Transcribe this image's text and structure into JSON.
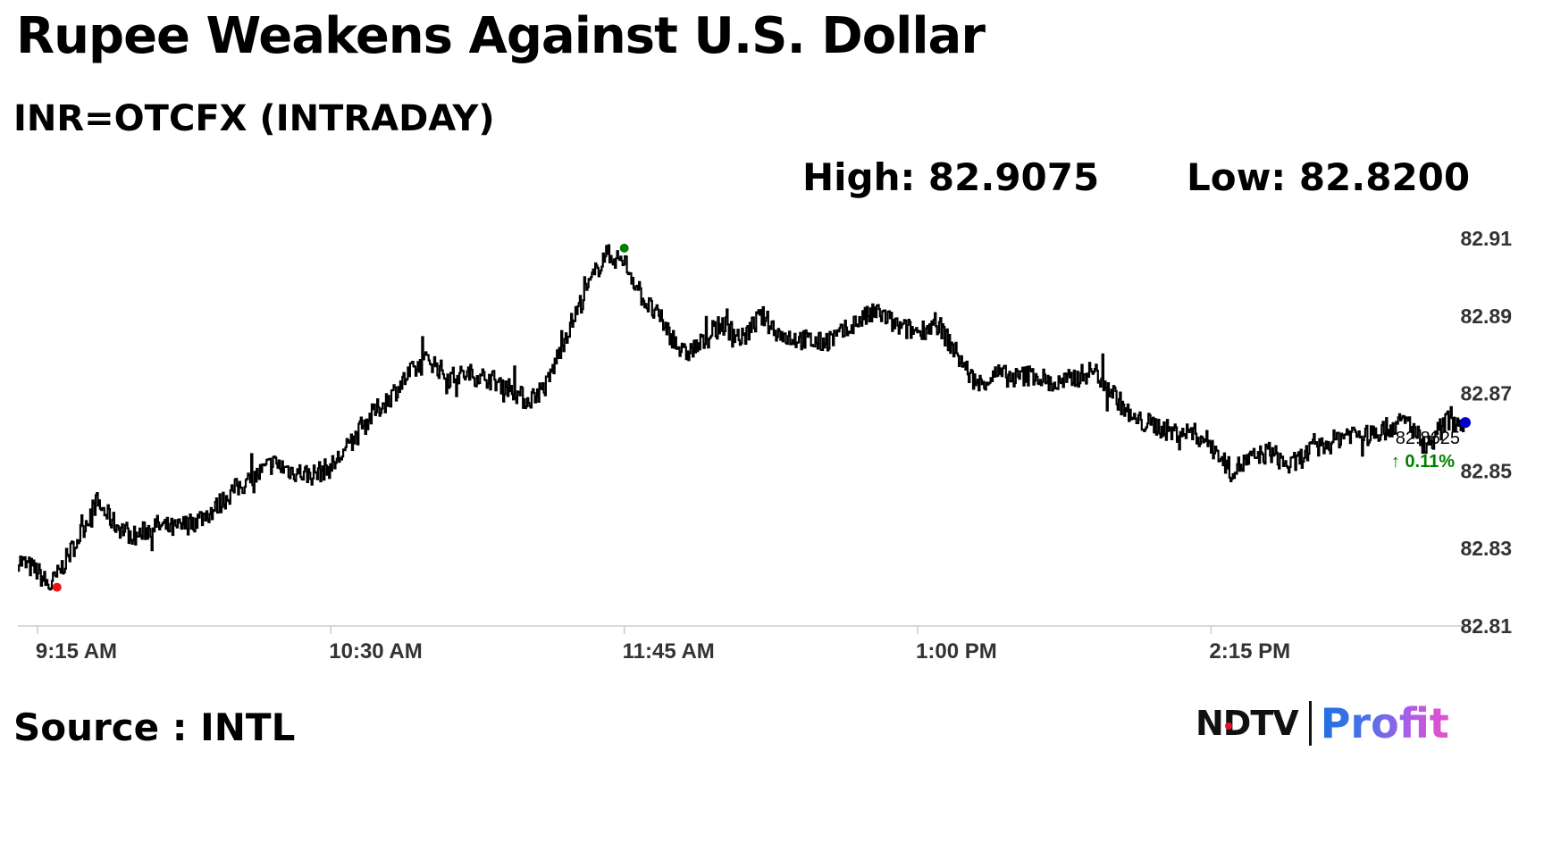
{
  "header": {
    "title": "Rupee Weakens Against U.S. Dollar",
    "subtitle": "INR=OTCFX (INTRADAY)",
    "high_text": "High: 82.9075",
    "low_text": "Low: 82.8200"
  },
  "footer": {
    "source": "Source : INTL",
    "logo_ndtv": "NDTV",
    "logo_profit": "Profit"
  },
  "colors": {
    "line": "#000000",
    "high_marker": "#008000",
    "low_marker": "#ee1111",
    "last_marker": "#0000cc",
    "change_text": "#008000",
    "axis": "#cccccc"
  },
  "chart_data": {
    "type": "line",
    "title": "Rupee Weakens Against U.S. Dollar",
    "subtitle": "INR=OTCFX (INTRADAY)",
    "x_unit": "time",
    "xlim": [
      "9:10",
      "3:20"
    ],
    "ylim": [
      82.81,
      82.91
    ],
    "y_ticks": [
      "82.91",
      "82.89",
      "82.87",
      "82.85",
      "82.83",
      "82.81"
    ],
    "x_ticks": [
      "9:15 AM",
      "10:30 AM",
      "11:45 AM",
      "1:00 PM",
      "2:15 PM"
    ],
    "grid": false,
    "legend": "none",
    "series": [
      {
        "x": [
          "9:10",
          "9:15",
          "9:18",
          "9:20",
          "9:25",
          "9:30",
          "9:35",
          "9:40",
          "9:45",
          "9:50",
          "9:55",
          "10:00",
          "10:05",
          "10:10",
          "10:15",
          "10:20",
          "10:25",
          "10:30",
          "10:35",
          "10:40",
          "10:45",
          "10:50",
          "10:55",
          "11:00",
          "11:05",
          "11:10",
          "11:15",
          "11:20",
          "11:25",
          "11:30",
          "11:35",
          "11:40",
          "11:45",
          "11:50",
          "11:55",
          "12:00",
          "12:05",
          "12:10",
          "12:15",
          "12:20",
          "12:25",
          "12:30",
          "12:35",
          "12:40",
          "12:45",
          "12:50",
          "12:55",
          "1:00",
          "1:05",
          "1:10",
          "1:15",
          "1:20",
          "1:25",
          "1:30",
          "1:35",
          "1:40",
          "1:45",
          "1:50",
          "1:55",
          "2:00",
          "2:05",
          "2:10",
          "2:15",
          "2:20",
          "2:25",
          "2:30",
          "2:35",
          "2:40",
          "2:45",
          "2:50",
          "2:55",
          "3:00",
          "3:05",
          "3:10",
          "3:15",
          "3:20"
        ],
        "y": [
          82.827,
          82.824,
          82.82,
          82.823,
          82.832,
          82.842,
          82.836,
          82.833,
          82.836,
          82.835,
          82.837,
          82.84,
          82.845,
          82.848,
          82.852,
          82.85,
          82.849,
          82.851,
          82.857,
          82.864,
          82.869,
          82.875,
          82.879,
          82.874,
          82.875,
          82.874,
          82.872,
          82.868,
          82.872,
          82.885,
          82.896,
          82.906,
          82.904,
          82.894,
          82.888,
          82.88,
          82.883,
          82.888,
          82.884,
          82.89,
          82.885,
          82.884,
          82.883,
          82.885,
          82.889,
          82.891,
          82.887,
          82.886,
          82.888,
          82.88,
          82.872,
          82.875,
          82.874,
          82.875,
          82.872,
          82.874,
          82.876,
          82.87,
          82.863,
          82.862,
          82.86,
          82.86,
          82.857,
          82.85,
          82.853,
          82.855,
          82.851,
          82.855,
          82.857,
          82.86,
          82.859,
          82.861,
          82.863,
          82.856,
          82.863,
          82.8625
        ]
      }
    ],
    "markers": {
      "high": {
        "x": "11:45",
        "y": 82.9075
      },
      "low": {
        "x": "9:20",
        "y": 82.82
      },
      "last": {
        "x": "3:20",
        "y": 82.8625
      }
    },
    "last_value_label": "82.8625",
    "change_label": "0.11%"
  }
}
